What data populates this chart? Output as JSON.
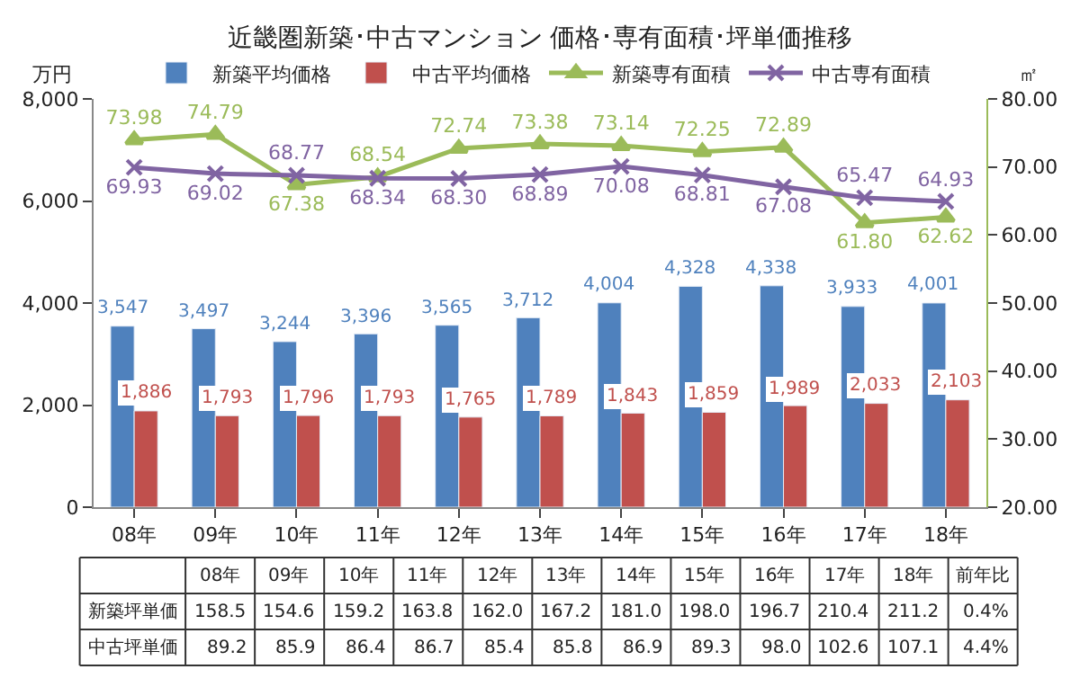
{
  "chart_data": {
    "type": "bar",
    "title": "近畿圏新築･中古マンション 価格･専有面積･坪単価推移",
    "ylabel": "万円",
    "y2label": "㎡",
    "categories": [
      "08年",
      "09年",
      "10年",
      "11年",
      "12年",
      "13年",
      "14年",
      "15年",
      "16年",
      "17年",
      "18年"
    ],
    "series": [
      {
        "name": "新築平均価格",
        "color": "#4f81bd",
        "values": [
          3547,
          3497,
          3244,
          3396,
          3565,
          3712,
          4004,
          4328,
          4338,
          3933,
          4001
        ],
        "value_labels": [
          "3,547",
          "3,497",
          "3,244",
          "3,396",
          "3,565",
          "3,712",
          "4,004",
          "4,328",
          "4,338",
          "3,933",
          "4,001"
        ]
      },
      {
        "name": "中古平均価格",
        "color": "#c0504d",
        "values": [
          1886,
          1793,
          1796,
          1793,
          1765,
          1789,
          1843,
          1859,
          1989,
          2033,
          2103
        ],
        "value_labels": [
          "1,886",
          "1,793",
          "1,796",
          "1,793",
          "1,765",
          "1,789",
          "1,843",
          "1,859",
          "1,989",
          "2,033",
          "2,103"
        ]
      },
      {
        "name": "新築専有面積",
        "type": "line",
        "axis": "y2",
        "marker": "triangle",
        "color": "#9bbb59",
        "values": [
          73.98,
          74.79,
          67.38,
          68.54,
          72.74,
          73.38,
          73.14,
          72.25,
          72.89,
          61.8,
          62.62
        ],
        "value_labels": [
          "73.98",
          "74.79",
          "67.38",
          "68.54",
          "72.74",
          "73.38",
          "73.14",
          "72.25",
          "72.89",
          "61.80",
          "62.62"
        ]
      },
      {
        "name": "中古専有面積",
        "type": "line",
        "axis": "y2",
        "marker": "cross",
        "color": "#8064a2",
        "values": [
          69.93,
          69.02,
          68.77,
          68.34,
          68.3,
          68.89,
          70.08,
          68.81,
          67.08,
          65.47,
          64.93
        ],
        "value_labels": [
          "69.93",
          "69.02",
          "68.77",
          "68.34",
          "68.30",
          "68.89",
          "70.08",
          "68.81",
          "67.08",
          "65.47",
          "64.93"
        ]
      }
    ],
    "ylim": [
      0,
      8000
    ],
    "yticks": [
      {
        "value": 0,
        "label": "0"
      },
      {
        "value": 2000,
        "label": "2,000"
      },
      {
        "value": 4000,
        "label": "4,000"
      },
      {
        "value": 6000,
        "label": "6,000"
      },
      {
        "value": 8000,
        "label": "8,000"
      }
    ],
    "y2lim": [
      20,
      80
    ],
    "y2ticks": [
      {
        "value": 20,
        "label": "20.00"
      },
      {
        "value": 30,
        "label": "30.00"
      },
      {
        "value": 40,
        "label": "40.00"
      },
      {
        "value": 50,
        "label": "50.00"
      },
      {
        "value": 60,
        "label": "60.00"
      },
      {
        "value": 70,
        "label": "70.00"
      },
      {
        "value": 80,
        "label": "80.00"
      }
    ],
    "legend": "top",
    "annotations": [
      "08年",
      "09年",
      "10年",
      "11年",
      "12年",
      "13年",
      "14年",
      "15年",
      "16年",
      "17年",
      "18年",
      "前年比",
      "新築坪単価",
      "158.5",
      "154.6",
      "159.2",
      "163.8",
      "162.0",
      "167.2",
      "181.0",
      "198.0",
      "196.7",
      "210.4",
      "211.2",
      "0.4%",
      "中古坪単価",
      "89.2",
      "85.9",
      "86.4",
      "86.7",
      "85.4",
      "85.8",
      "86.9",
      "89.3",
      "98.0",
      "102.6",
      "107.1",
      "4.4%"
    ]
  }
}
